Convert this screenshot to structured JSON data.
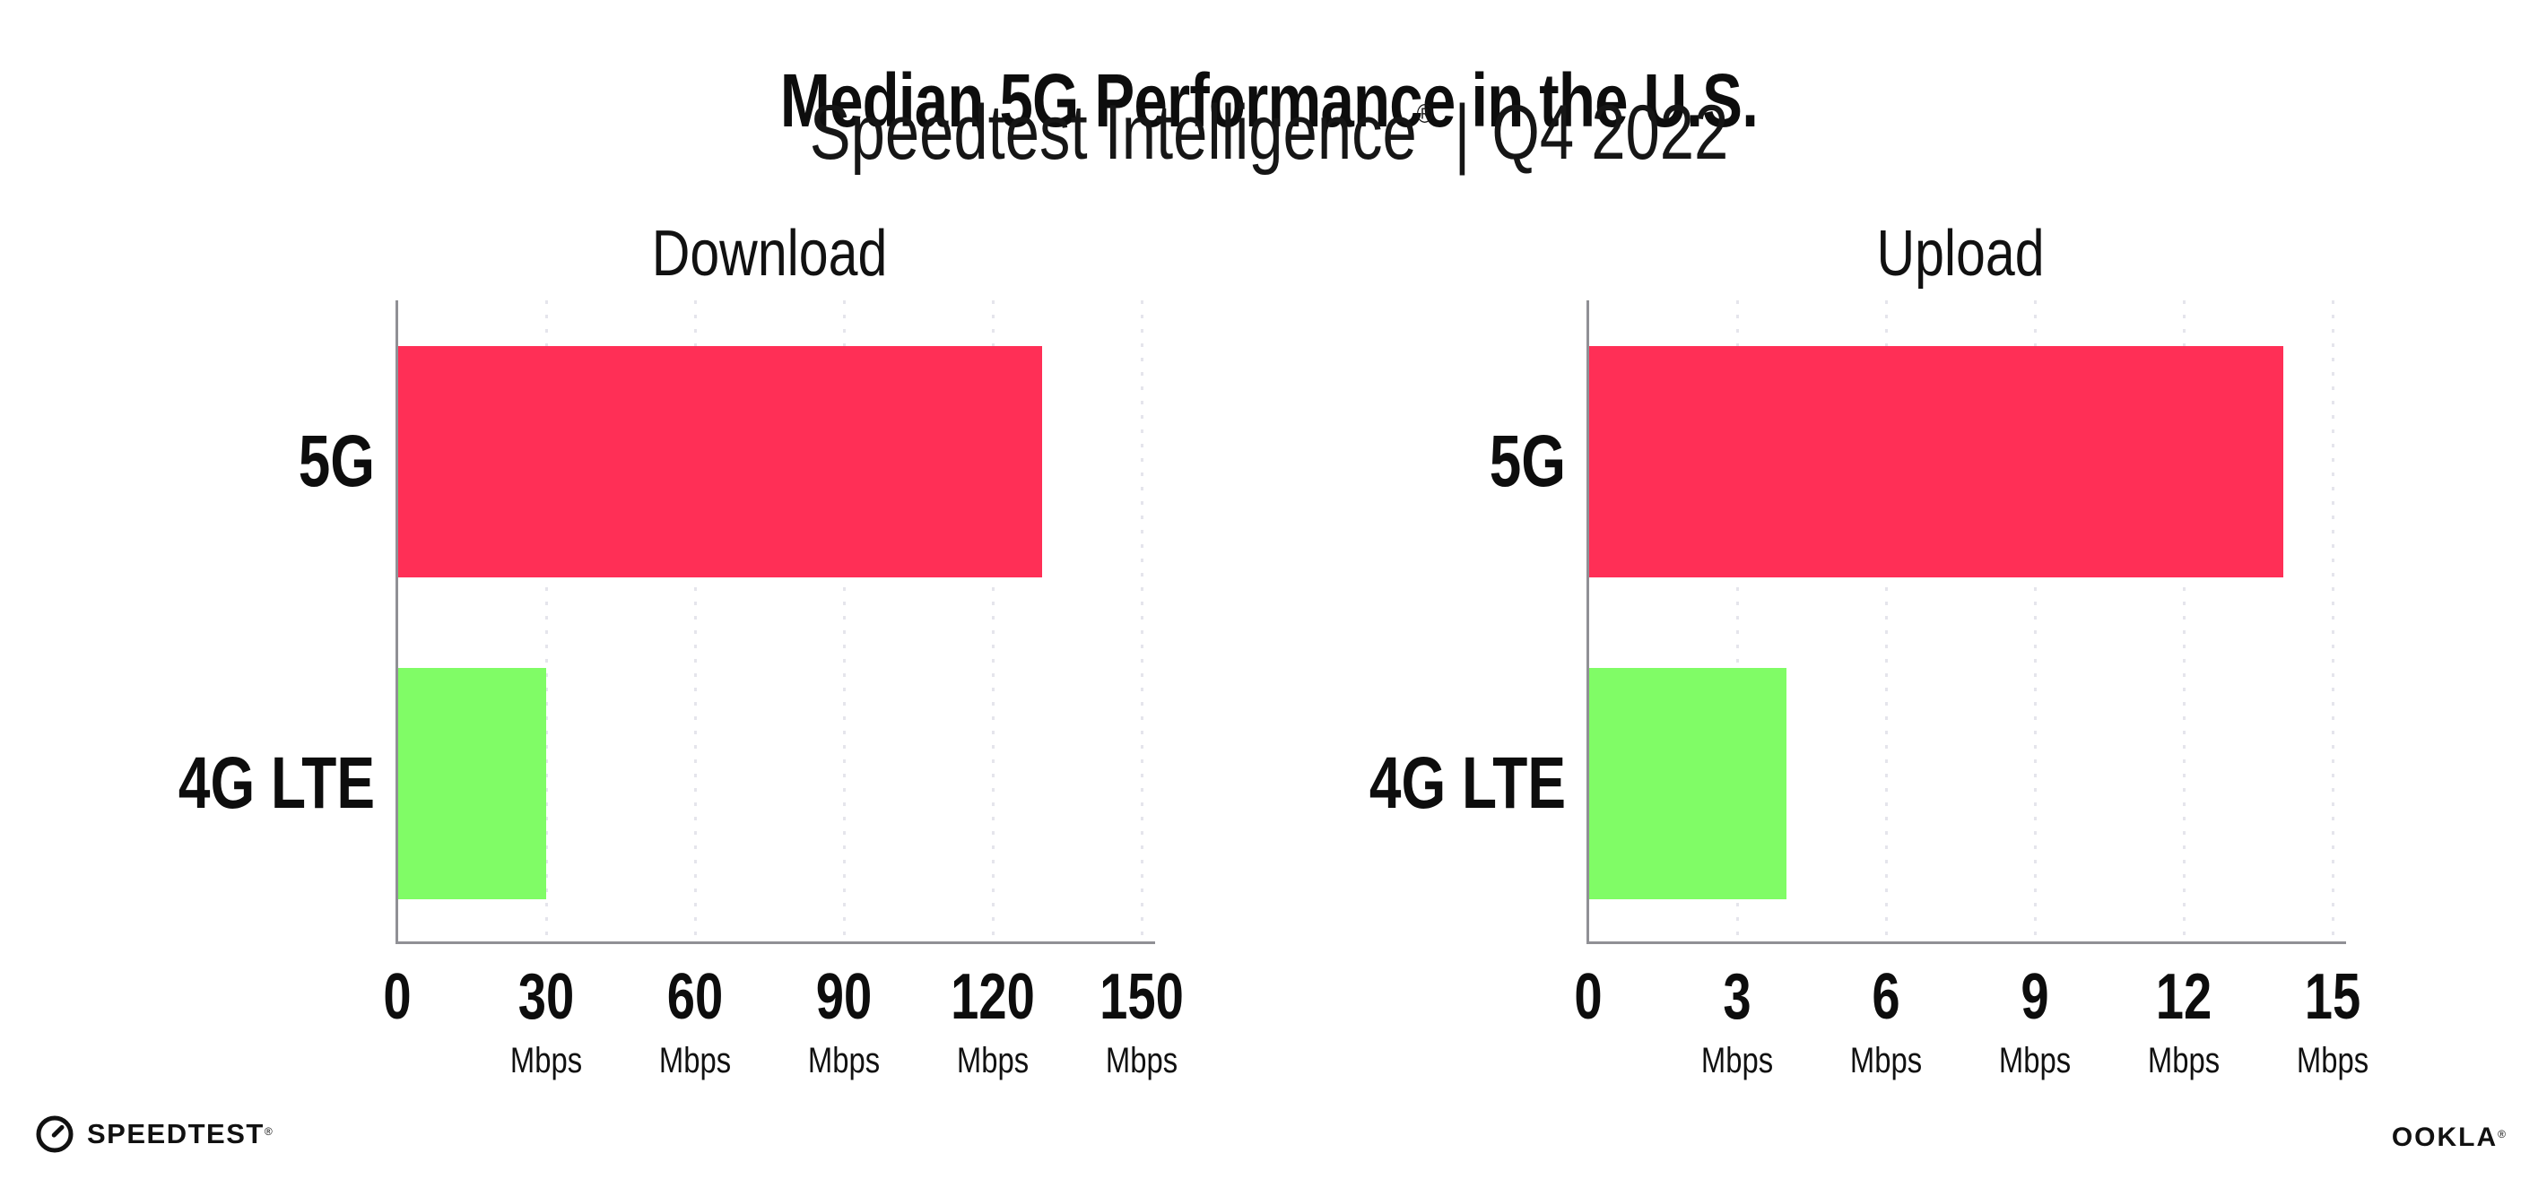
{
  "header": {
    "title": "Median 5G Performance in the U.S.",
    "subtitle_brand": "Speedtest Intelligence",
    "subtitle_reg": "®",
    "subtitle_sep": "|",
    "subtitle_period": "Q4 2022"
  },
  "footer": {
    "speedtest_logo_text": "SPEEDTEST",
    "speedtest_reg": "®",
    "speedtest_icon": "gauge-icon",
    "ookla_logo_text": "OOKLA",
    "ookla_reg": "®"
  },
  "colors": {
    "bar_5g": "#ff2f56",
    "bar_4g_lte": "#80fc66",
    "axis": "#909095",
    "gridline": "#e5e5ec",
    "text": "#0d0d0d",
    "background": "#ffffff"
  },
  "chart_data": [
    {
      "type": "bar",
      "orientation": "horizontal",
      "title": "Download",
      "categories": [
        "5G",
        "4G LTE"
      ],
      "values": [
        130,
        30
      ],
      "unit": "Mbps",
      "xlim": [
        0,
        150
      ],
      "xticks": [
        0,
        30,
        60,
        90,
        120,
        150
      ],
      "series_colors": [
        "#ff2f56",
        "#80fc66"
      ],
      "grid": "dotted-vertical",
      "legend": "none",
      "data_labels": "none"
    },
    {
      "type": "bar",
      "orientation": "horizontal",
      "title": "Upload",
      "categories": [
        "5G",
        "4G LTE"
      ],
      "values": [
        14,
        4
      ],
      "unit": "Mbps",
      "xlim": [
        0,
        15
      ],
      "xticks": [
        0,
        3,
        6,
        9,
        12,
        15
      ],
      "series_colors": [
        "#ff2f56",
        "#80fc66"
      ],
      "grid": "dotted-vertical",
      "legend": "none",
      "data_labels": "none"
    }
  ]
}
